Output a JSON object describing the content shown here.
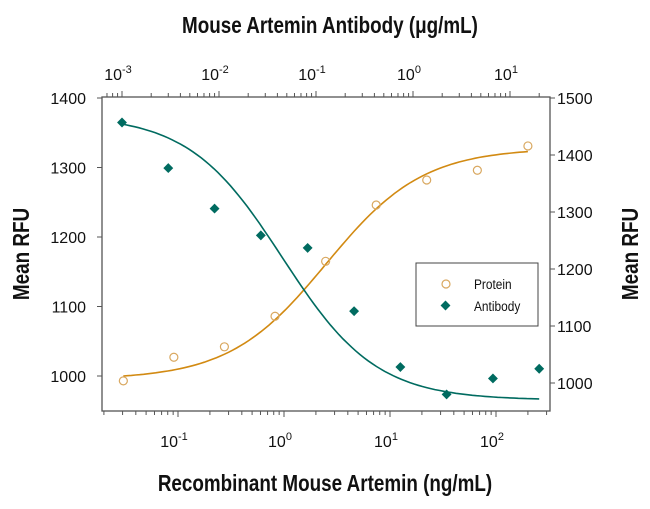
{
  "chart_data": {
    "type": "scatter",
    "top_title": "Mouse Artemin Antibody (μg/mL)",
    "xlabel": "Recombinant Mouse Artemin (ng/mL)",
    "ylabel_left": "Mean RFU",
    "ylabel_right": "Mean RFU",
    "x_scale": "log",
    "x_bottom": {
      "lim": [
        0.02,
        300
      ],
      "ticks": [
        {
          "base": "10",
          "exp": "-1",
          "value": 0.1
        },
        {
          "base": "10",
          "exp": "0",
          "value": 1
        },
        {
          "base": "10",
          "exp": "1",
          "value": 10
        },
        {
          "base": "10",
          "exp": "2",
          "value": 100
        }
      ]
    },
    "x_top": {
      "lim": [
        0.0006,
        40
      ],
      "ticks": [
        {
          "base": "10",
          "exp": "-3",
          "value": 0.001
        },
        {
          "base": "10",
          "exp": "-2",
          "value": 0.01
        },
        {
          "base": "10",
          "exp": "-1",
          "value": 0.1
        },
        {
          "base": "10",
          "exp": "0",
          "value": 1
        },
        {
          "base": "10",
          "exp": "1",
          "value": 10
        }
      ]
    },
    "y_left": {
      "lim": [
        950,
        1400
      ],
      "ticks": [
        "1000",
        "1100",
        "1200",
        "1300",
        "1400"
      ]
    },
    "y_right": {
      "lim": [
        950,
        1500
      ],
      "ticks": [
        "1000",
        "1100",
        "1200",
        "1300",
        "1400",
        "1500"
      ]
    },
    "grid": false,
    "legend": "right-center",
    "series": [
      {
        "name": "Protein",
        "axis": "bottom-left",
        "marker": "open-circle",
        "color": "#d28a12",
        "x": [
          0.0305,
          0.0914,
          0.274,
          0.823,
          2.47,
          7.41,
          22.2,
          66.7,
          200
        ],
        "y": [
          993,
          1027,
          1042,
          1086,
          1165,
          1246,
          1282,
          1296,
          1331
        ],
        "fit": {
          "bottom": 995,
          "top": 1328,
          "ec50": 2.5,
          "hill": 0.95
        }
      },
      {
        "name": "Antibody",
        "axis": "top-right",
        "marker": "filled-diamond",
        "color": "#006b60",
        "x": [
          0.001,
          0.003,
          0.009,
          0.027,
          0.082,
          0.247,
          0.741,
          2.22,
          6.67,
          20
        ],
        "y": [
          1457,
          1377,
          1306,
          1259,
          1237,
          1126,
          1028,
          980,
          1008,
          1025
        ],
        "fit": {
          "bottom": 970,
          "top": 1470,
          "ec50": 0.045,
          "hill": -0.9
        }
      }
    ]
  }
}
